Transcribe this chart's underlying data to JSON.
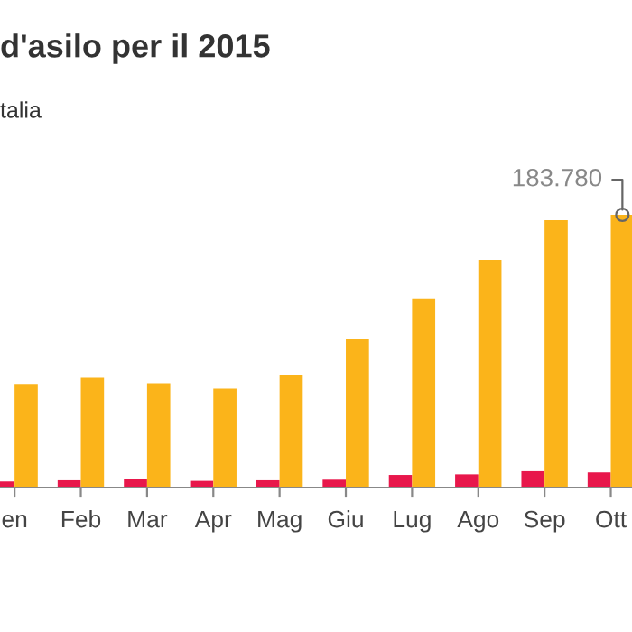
{
  "chart_data": {
    "type": "bar",
    "title": "d'asilo per il 2015",
    "subtitle": "talia",
    "categories": [
      "en",
      "Feb",
      "Mar",
      "Apr",
      "Mag",
      "Giu",
      "Lug",
      "Ago",
      "Sep",
      "Ott"
    ],
    "series": [
      {
        "color": "#e8174b",
        "values": [
          4100,
          4900,
          5700,
          4500,
          4900,
          5300,
          8500,
          8900,
          11000,
          10200
        ]
      },
      {
        "color": "#fbb41a",
        "values": [
          69900,
          74000,
          70300,
          66700,
          76000,
          100400,
          127300,
          153300,
          180100,
          183780
        ],
        "value_labels": [
          null,
          null,
          null,
          null,
          null,
          null,
          null,
          null,
          null,
          "183.780"
        ]
      }
    ],
    "grid": false,
    "legend": false
  }
}
